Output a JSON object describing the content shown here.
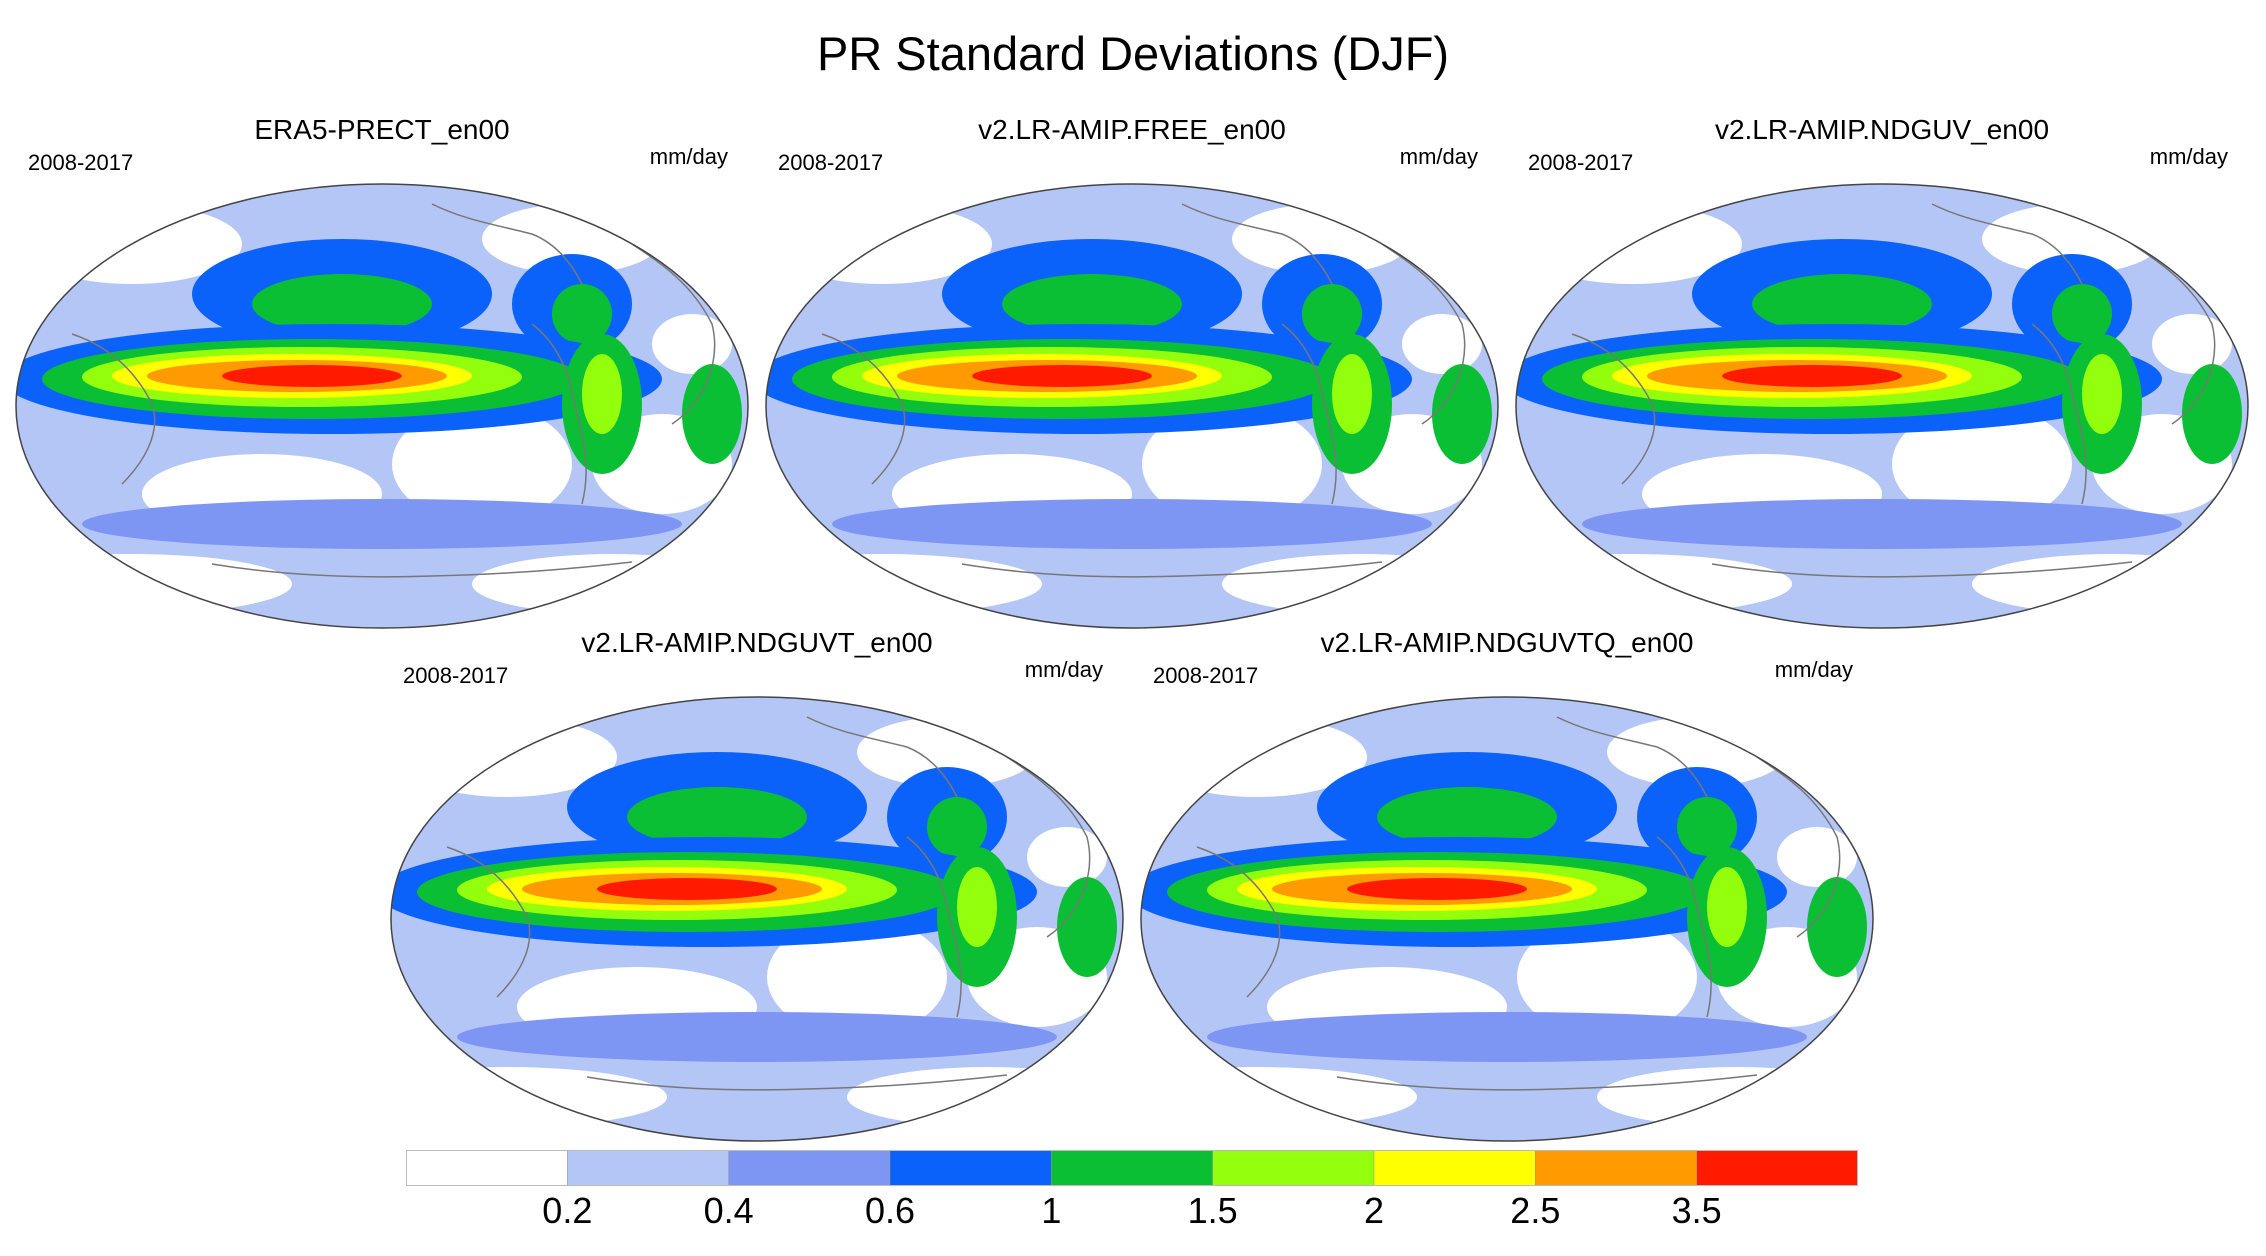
{
  "figure": {
    "title": "PR Standard Deviations (DJF)"
  },
  "panels": [
    {
      "title": "ERA5-PRECT_en00",
      "years": "2008-2017",
      "units": "mm/day"
    },
    {
      "title": "v2.LR-AMIP.FREE_en00",
      "years": "2008-2017",
      "units": "mm/day"
    },
    {
      "title": "v2.LR-AMIP.NDGUV_en00",
      "years": "2008-2017",
      "units": "mm/day"
    },
    {
      "title": "v2.LR-AMIP.NDGUVT_en00",
      "years": "2008-2017",
      "units": "mm/day"
    },
    {
      "title": "v2.LR-AMIP.NDGUVTQ_en00",
      "years": "2008-2017",
      "units": "mm/day"
    }
  ],
  "colorbar": {
    "colors": [
      "#ffffff",
      "#b4c6f6",
      "#7d96f4",
      "#0b62fb",
      "#0bbf34",
      "#94ff0c",
      "#ffff00",
      "#ff9a00",
      "#ff1a00"
    ],
    "labels": [
      "0.2",
      "0.4",
      "0.6",
      "1",
      "1.5",
      "2",
      "2.5",
      "3.5"
    ]
  },
  "colors": {
    "coast": "#777777",
    "outline": "#444444"
  }
}
